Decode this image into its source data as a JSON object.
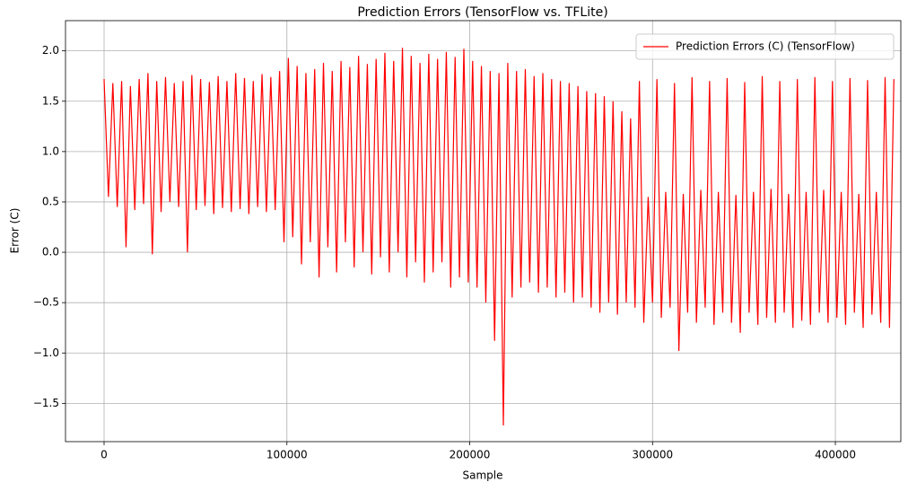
{
  "chart_data": {
    "type": "line",
    "title": "Prediction Errors (TensorFlow vs. TFLite)",
    "x_label": "Sample",
    "y_label": "Error (C)",
    "grid": true,
    "legend": "upper right",
    "xlim": [
      -21100,
      435800
    ],
    "ylim": [
      -1.88,
      2.3
    ],
    "xticks": [
      0,
      100000,
      200000,
      300000,
      400000
    ],
    "yticks": [
      {
        "value": -1.5,
        "label": "−1.5"
      },
      {
        "value": -1.0,
        "label": "−1.0"
      },
      {
        "value": -0.5,
        "label": "−0.5"
      },
      {
        "value": 0.0,
        "label": "0.0"
      },
      0.5,
      {
        "value": 1.0,
        "label": "1.0"
      },
      1.5,
      {
        "value": 2.0,
        "label": "2.0"
      }
    ],
    "x": [
      0,
      2400,
      4800,
      7200,
      9600,
      12000,
      14400,
      16800,
      19200,
      21600,
      24000,
      26400,
      28800,
      31200,
      33600,
      36000,
      38400,
      40800,
      43200,
      45600,
      48000,
      50400,
      52800,
      55200,
      57600,
      60000,
      62400,
      64800,
      67200,
      69600,
      72000,
      74400,
      76800,
      79200,
      81600,
      84000,
      86400,
      88800,
      91200,
      93600,
      96000,
      98400,
      100800,
      103200,
      105600,
      108000,
      110400,
      112800,
      115200,
      117600,
      120000,
      122400,
      124800,
      127200,
      129600,
      132000,
      134400,
      136800,
      139200,
      141600,
      144000,
      146400,
      148800,
      151200,
      153600,
      156000,
      158400,
      160800,
      163200,
      165600,
      168000,
      170400,
      172800,
      175200,
      177600,
      180000,
      182400,
      184800,
      187200,
      189600,
      192000,
      194400,
      196800,
      199200,
      201600,
      204000,
      206400,
      208800,
      211200,
      213600,
      216000,
      218400,
      220800,
      223200,
      225600,
      228000,
      230400,
      232800,
      235200,
      237600,
      240000,
      242400,
      244800,
      247200,
      249600,
      252000,
      254400,
      256800,
      259200,
      261600,
      264000,
      266400,
      268800,
      271200,
      273600,
      276000,
      278400,
      280800,
      283200,
      285600,
      288000,
      290400,
      292800,
      295200,
      297600,
      300000,
      302400,
      304800,
      307200,
      309600,
      312000,
      314400,
      316800,
      319200,
      321600,
      324000,
      326400,
      328800,
      331200,
      333600,
      336000,
      338400,
      340800,
      343200,
      345600,
      348000,
      350400,
      352800,
      355200,
      357600,
      360000,
      362400,
      364800,
      367200,
      369600,
      372000,
      374400,
      376800,
      379200,
      381600,
      384000,
      386400,
      388800,
      391200,
      393600,
      396000,
      398400,
      400800,
      403200,
      405600,
      408000,
      410400,
      412800,
      415200,
      417600,
      420000,
      422400,
      424800,
      427200,
      429600,
      432000
    ],
    "series": [
      {
        "name": "Prediction Errors (C) (TensorFlow)",
        "color": "#ff0000",
        "values": [
          1.72,
          0.55,
          1.68,
          0.45,
          1.7,
          0.05,
          1.65,
          0.42,
          1.72,
          0.48,
          1.78,
          -0.02,
          1.7,
          0.4,
          1.74,
          0.5,
          1.68,
          0.45,
          1.7,
          0.0,
          1.76,
          0.42,
          1.72,
          0.46,
          1.69,
          0.38,
          1.75,
          0.44,
          1.7,
          0.4,
          1.78,
          0.43,
          1.73,
          0.38,
          1.7,
          0.45,
          1.77,
          0.4,
          1.74,
          0.42,
          1.8,
          0.1,
          1.93,
          0.15,
          1.85,
          -0.12,
          1.78,
          0.1,
          1.82,
          -0.25,
          1.88,
          0.05,
          1.8,
          -0.2,
          1.9,
          0.1,
          1.84,
          -0.15,
          1.95,
          0.0,
          1.87,
          -0.22,
          1.92,
          -0.05,
          1.98,
          -0.2,
          1.9,
          0.0,
          2.03,
          -0.25,
          1.95,
          -0.1,
          1.88,
          -0.3,
          1.97,
          -0.2,
          1.92,
          -0.1,
          1.99,
          -0.35,
          1.94,
          -0.25,
          2.02,
          -0.3,
          1.9,
          -0.35,
          1.85,
          -0.5,
          1.8,
          -0.88,
          1.78,
          -1.72,
          1.88,
          -0.45,
          1.8,
          -0.35,
          1.82,
          -0.3,
          1.75,
          -0.4,
          1.78,
          -0.35,
          1.72,
          -0.45,
          1.7,
          -0.4,
          1.68,
          -0.5,
          1.65,
          -0.45,
          1.6,
          -0.55,
          1.58,
          -0.6,
          1.55,
          -0.5,
          1.5,
          -0.62,
          1.4,
          -0.5,
          1.33,
          -0.55,
          1.7,
          -0.7,
          0.55,
          -0.5,
          1.72,
          -0.65,
          0.6,
          -0.55,
          1.68,
          -0.98,
          0.58,
          -0.6,
          1.74,
          -0.7,
          0.62,
          -0.55,
          1.7,
          -0.72,
          0.6,
          -0.6,
          1.73,
          -0.7,
          0.57,
          -0.8,
          1.69,
          -0.6,
          0.6,
          -0.72,
          1.75,
          -0.65,
          0.63,
          -0.7,
          1.7,
          -0.6,
          0.58,
          -0.75,
          1.72,
          -0.68,
          0.6,
          -0.72,
          1.74,
          -0.6,
          0.62,
          -0.7,
          1.7,
          -0.65,
          0.6,
          -0.72,
          1.73,
          -0.6,
          0.58,
          -0.75,
          1.71,
          -0.62,
          0.6,
          -0.7,
          1.74,
          -0.75,
          1.72
        ]
      }
    ]
  }
}
